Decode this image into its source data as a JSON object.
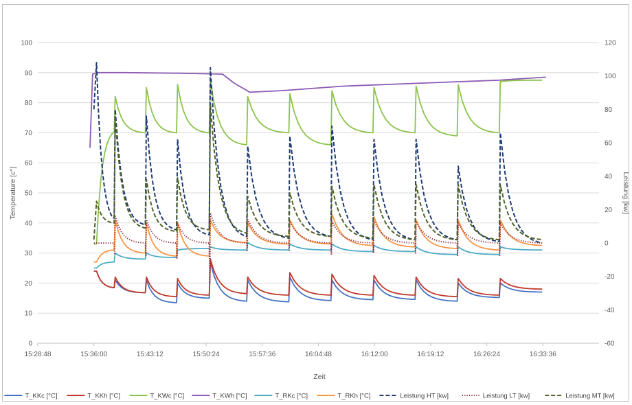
{
  "chart_data": {
    "type": "line",
    "xlabel": "Zeit",
    "ylabel": "Temperature [c°]",
    "y2label": "Leistung [kw]",
    "ylim": [
      0,
      100
    ],
    "y2lim": [
      -60,
      120
    ],
    "xlim": [
      "15:28:48",
      "16:40:48"
    ],
    "x_ticks": [
      "15:28:48",
      "15:36:00",
      "15:43:12",
      "15:50:24",
      "15:57:36",
      "16:04:48",
      "16:12:00",
      "16:19:12",
      "16:26:24",
      "16:33:36"
    ],
    "y_ticks": [
      0,
      10,
      20,
      30,
      40,
      50,
      60,
      70,
      80,
      90,
      100
    ],
    "y2_ticks": [
      -60,
      -40,
      -20,
      0,
      20,
      40,
      60,
      80,
      100,
      120
    ],
    "grid": true,
    "legend_position": "bottom",
    "cycle_starts": [
      "15:36:00",
      "15:38:36",
      "15:42:36",
      "15:46:36",
      "15:50:48",
      "15:55:36",
      "16:01:00",
      "16:06:24",
      "16:11:48",
      "16:17:12",
      "16:22:36",
      "16:28:00",
      "16:33:36"
    ],
    "series": [
      {
        "name": "T_KKc [°C]",
        "axis": "left",
        "color": "#4472c4",
        "dash": "solid",
        "base": [
          24,
          18.5,
          16.8,
          13.5,
          15,
          14,
          13.8,
          14.2,
          14.5,
          14.6,
          14,
          15.2,
          17
        ],
        "peak": [
          24,
          21,
          21,
          20,
          27,
          21,
          22,
          21,
          21,
          21,
          20,
          20,
          17
        ]
      },
      {
        "name": "T_KKh [°C]",
        "axis": "left",
        "color": "#c0392b",
        "dash": "solid",
        "base": [
          24,
          18.5,
          16.8,
          15.5,
          16,
          16.5,
          16,
          16,
          16,
          16,
          15.5,
          16,
          18
        ],
        "peak": [
          24,
          22,
          22,
          21.5,
          28,
          22,
          23.5,
          23,
          22.5,
          22,
          21.5,
          21.5,
          18
        ]
      },
      {
        "name": "T_KWc [°C]",
        "axis": "left",
        "color": "#8bc34a",
        "dash": "solid",
        "base": [
          33,
          70,
          70,
          70,
          70,
          66,
          70,
          66,
          70,
          70,
          69,
          70,
          87.5
        ],
        "peak": [
          33,
          82,
          85,
          86,
          87.5,
          82,
          83,
          84,
          85,
          85.5,
          86,
          87,
          87.5
        ]
      },
      {
        "name": "T_KWh [°C]",
        "axis": "left",
        "color": "#8e5ab5",
        "dash": "solid",
        "x": [
          "15:35:30",
          "15:35:50",
          "15:36:30",
          "15:40:00",
          "15:47:00",
          "15:52:30",
          "15:54:00",
          "15:56:00",
          "16:00:00",
          "16:08:00",
          "16:18:00",
          "16:28:00",
          "16:34:00"
        ],
        "values": [
          65,
          89.5,
          90,
          90,
          89.8,
          89.5,
          86.5,
          83.5,
          84,
          85.5,
          86.5,
          87.5,
          88.5
        ]
      },
      {
        "name": "T_RKc [°C]",
        "axis": "left",
        "color": "#4bacc6",
        "dash": "solid",
        "base": [
          25,
          27,
          28,
          28.5,
          31.5,
          31,
          31,
          31,
          30.5,
          30.5,
          29.5,
          29.5,
          31
        ],
        "peak": [
          25,
          30,
          30,
          31,
          32,
          33.5,
          33,
          33,
          32.5,
          32,
          32,
          32,
          31
        ]
      },
      {
        "name": "T_RKh [°C]",
        "axis": "left",
        "color": "#f79646",
        "dash": "solid",
        "base": [
          27,
          31,
          30,
          29,
          29,
          33.5,
          33,
          33,
          32.5,
          32,
          31.5,
          31,
          32.5
        ],
        "peak": [
          27,
          41,
          40,
          40,
          41,
          40,
          41,
          43,
          42,
          41,
          41,
          41,
          32.5
        ]
      },
      {
        "name": "Leistung HT [kw]",
        "axis": "right",
        "color": "#1f3b73",
        "dash": "dash",
        "base": [
          80,
          15,
          11,
          8,
          5,
          4,
          3,
          4,
          2,
          2,
          2,
          1,
          0
        ],
        "peak": [
          108,
          80,
          76,
          62,
          105,
          58,
          64,
          70,
          62,
          62,
          46,
          66,
          0
        ]
      },
      {
        "name": "Leistung LT [kw]",
        "axis": "right",
        "color": "#8b2635",
        "dash": "dot",
        "base": [
          0,
          0,
          0,
          0,
          0,
          0,
          0,
          0,
          0,
          0,
          0,
          0,
          0
        ],
        "peak": [
          0,
          16,
          14,
          12,
          18,
          14,
          13,
          13,
          13,
          13,
          12,
          12,
          0
        ],
        "dip": [
          0,
          -7,
          -8,
          -9,
          -24,
          -5,
          -5,
          -7,
          -6,
          -6,
          -8,
          -8,
          0
        ]
      },
      {
        "name": "Leistung MT [kw]",
        "axis": "right",
        "color": "#4f6228",
        "dash": "dash",
        "base": [
          2,
          12,
          9,
          7,
          8,
          6,
          4,
          4,
          3,
          2,
          2,
          2,
          2
        ],
        "peak": [
          25,
          75,
          38,
          39,
          83,
          28,
          30,
          34,
          35,
          35,
          35,
          35,
          2
        ]
      }
    ]
  }
}
